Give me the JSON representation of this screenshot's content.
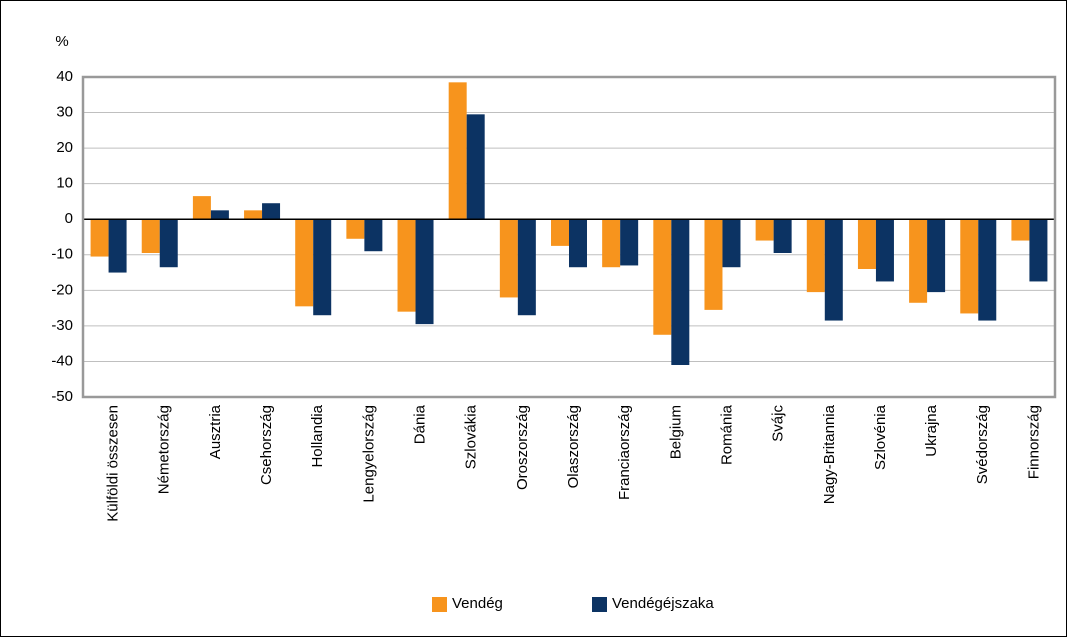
{
  "chart_data": {
    "type": "bar",
    "y_axis_label": "%",
    "categories": [
      "Külföldi összesen",
      "Németország",
      "Ausztria",
      "Csehország",
      "Hollandia",
      "Lengyelország",
      "Dánia",
      "Szlovákia",
      "Oroszország",
      "Olaszország",
      "Franciaország",
      "Belgium",
      "Románia",
      "Svájc",
      "Nagy-Britannia",
      "Szlovénia",
      "Ukrajna",
      "Svédország",
      "Finnország"
    ],
    "series": [
      {
        "name": "Vendég",
        "color": "#f7941d",
        "values": [
          -10.5,
          -9.5,
          6.5,
          2.5,
          -24.5,
          -5.5,
          -26,
          38.5,
          -22,
          -7.5,
          -13.5,
          -32.5,
          -25.5,
          -6,
          -20.5,
          -14,
          -23.5,
          -26.5,
          -6
        ]
      },
      {
        "name": "Vendégéjszaka",
        "color": "#0c3363",
        "values": [
          -15,
          -13.5,
          2.5,
          4.5,
          -27,
          -9,
          -29.5,
          29.5,
          -27,
          -13.5,
          -13,
          -41,
          -13.5,
          -9.5,
          -28.5,
          -17.5,
          -20.5,
          -28.5,
          -17.5
        ]
      }
    ],
    "ylim": [
      -50,
      40
    ],
    "yticks": [
      40,
      30,
      20,
      10,
      0,
      -10,
      -20,
      -30,
      -40,
      -50
    ],
    "grid": true
  }
}
